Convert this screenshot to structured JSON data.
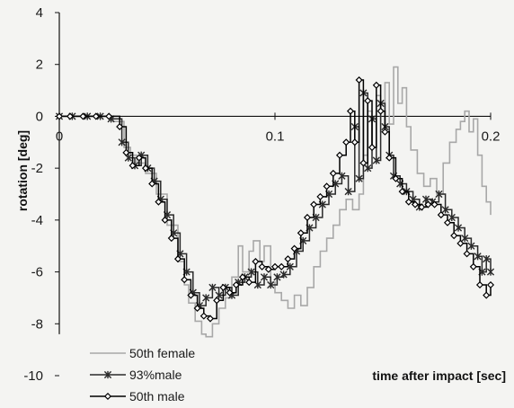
{
  "chart_data": {
    "type": "line",
    "title": "",
    "xlabel": "time after impact  [sec]",
    "ylabel": "rotation [deg]",
    "xlim": [
      0,
      0.2
    ],
    "ylim": [
      -10,
      4
    ],
    "x_ticks": [
      0,
      0.1,
      0.2
    ],
    "x_tick_labels": [
      "0",
      "0.1",
      "0.2"
    ],
    "y_ticks": [
      4,
      2,
      0,
      -2,
      -4,
      -6,
      -8,
      -10
    ],
    "y_tick_labels": [
      "4",
      "2",
      "0",
      "-2",
      "-4",
      "-6",
      "-8",
      "-10"
    ],
    "grid": false,
    "legend_position": "bottom-left",
    "series": [
      {
        "name": "50th female",
        "color": "#a8a8a8",
        "marker": "dash",
        "points": [
          [
            0,
            0
          ],
          [
            0.01,
            0
          ],
          [
            0.02,
            0
          ],
          [
            0.025,
            -0.2
          ],
          [
            0.03,
            -1.2
          ],
          [
            0.033,
            -1.5
          ],
          [
            0.036,
            -1.8
          ],
          [
            0.04,
            -2.2
          ],
          [
            0.045,
            -3.0
          ],
          [
            0.05,
            -4.2
          ],
          [
            0.055,
            -5.6
          ],
          [
            0.058,
            -6.5
          ],
          [
            0.06,
            -7.2
          ],
          [
            0.063,
            -7.9
          ],
          [
            0.066,
            -8.4
          ],
          [
            0.068,
            -8.5
          ],
          [
            0.071,
            -8.0
          ],
          [
            0.074,
            -7.4
          ],
          [
            0.077,
            -7.0
          ],
          [
            0.08,
            -6.2
          ],
          [
            0.083,
            -5.0
          ],
          [
            0.085,
            -6.0
          ],
          [
            0.088,
            -5.2
          ],
          [
            0.09,
            -4.8
          ],
          [
            0.093,
            -5.6
          ],
          [
            0.095,
            -5.0
          ],
          [
            0.098,
            -6.4
          ],
          [
            0.1,
            -6.8
          ],
          [
            0.103,
            -7.1
          ],
          [
            0.106,
            -7.4
          ],
          [
            0.109,
            -6.9
          ],
          [
            0.112,
            -7.3
          ],
          [
            0.115,
            -6.6
          ],
          [
            0.118,
            -5.8
          ],
          [
            0.121,
            -5.2
          ],
          [
            0.124,
            -4.7
          ],
          [
            0.127,
            -4.2
          ],
          [
            0.13,
            -3.6
          ],
          [
            0.133,
            -3.2
          ],
          [
            0.136,
            -3.6
          ],
          [
            0.139,
            -3.0
          ],
          [
            0.141,
            -1.5
          ],
          [
            0.143,
            0.2
          ],
          [
            0.145,
            -1.2
          ],
          [
            0.147,
            0.8
          ],
          [
            0.149,
            -0.6
          ],
          [
            0.151,
            1.3
          ],
          [
            0.153,
            -0.3
          ],
          [
            0.155,
            1.9
          ],
          [
            0.157,
            0.5
          ],
          [
            0.159,
            1.1
          ],
          [
            0.161,
            -0.4
          ],
          [
            0.163,
            -1.3
          ],
          [
            0.166,
            -2.2
          ],
          [
            0.169,
            -2.7
          ],
          [
            0.172,
            -2.4
          ],
          [
            0.175,
            -3.0
          ],
          [
            0.178,
            -1.8
          ],
          [
            0.181,
            -1.0
          ],
          [
            0.184,
            -0.5
          ],
          [
            0.186,
            -0.2
          ],
          [
            0.188,
            0.2
          ],
          [
            0.19,
            -0.6
          ],
          [
            0.192,
            -0.1
          ],
          [
            0.194,
            -1.5
          ],
          [
            0.196,
            -2.7
          ],
          [
            0.198,
            -3.3
          ],
          [
            0.2,
            -3.8
          ]
        ]
      },
      {
        "name": "93%male",
        "color": "#2a2a2a",
        "marker": "asterisk",
        "points": [
          [
            0,
            0
          ],
          [
            0.006,
            0
          ],
          [
            0.013,
            0
          ],
          [
            0.019,
            0
          ],
          [
            0.024,
            -0.1
          ],
          [
            0.029,
            -1.0
          ],
          [
            0.032,
            -1.6
          ],
          [
            0.035,
            -1.9
          ],
          [
            0.038,
            -1.5
          ],
          [
            0.041,
            -2.0
          ],
          [
            0.044,
            -2.5
          ],
          [
            0.047,
            -3.2
          ],
          [
            0.05,
            -3.8
          ],
          [
            0.053,
            -4.5
          ],
          [
            0.056,
            -5.3
          ],
          [
            0.059,
            -6.0
          ],
          [
            0.062,
            -6.8
          ],
          [
            0.065,
            -7.3
          ],
          [
            0.068,
            -7.0
          ],
          [
            0.071,
            -6.6
          ],
          [
            0.074,
            -6.9
          ],
          [
            0.077,
            -6.6
          ],
          [
            0.08,
            -6.9
          ],
          [
            0.083,
            -6.4
          ],
          [
            0.086,
            -6.2
          ],
          [
            0.089,
            -6.0
          ],
          [
            0.092,
            -6.5
          ],
          [
            0.095,
            -6.2
          ],
          [
            0.098,
            -6.5
          ],
          [
            0.101,
            -6.2
          ],
          [
            0.104,
            -6.1
          ],
          [
            0.107,
            -5.8
          ],
          [
            0.11,
            -5.2
          ],
          [
            0.113,
            -4.8
          ],
          [
            0.116,
            -4.3
          ],
          [
            0.119,
            -3.9
          ],
          [
            0.122,
            -3.4
          ],
          [
            0.125,
            -3.0
          ],
          [
            0.128,
            -2.6
          ],
          [
            0.131,
            -2.3
          ],
          [
            0.134,
            -2.9
          ],
          [
            0.137,
            -0.4
          ],
          [
            0.139,
            -2.4
          ],
          [
            0.141,
            0.9
          ],
          [
            0.143,
            -2.0
          ],
          [
            0.145,
            -0.1
          ],
          [
            0.147,
            -1.7
          ],
          [
            0.149,
            0.5
          ],
          [
            0.151,
            -0.4
          ],
          [
            0.153,
            -1.5
          ],
          [
            0.155,
            -2.3
          ],
          [
            0.158,
            -2.6
          ],
          [
            0.161,
            -2.9
          ],
          [
            0.164,
            -3.2
          ],
          [
            0.167,
            -3.5
          ],
          [
            0.17,
            -3.2
          ],
          [
            0.173,
            -3.3
          ],
          [
            0.176,
            -3.0
          ],
          [
            0.179,
            -3.6
          ],
          [
            0.182,
            -3.9
          ],
          [
            0.185,
            -4.3
          ],
          [
            0.188,
            -4.7
          ],
          [
            0.191,
            -5.0
          ],
          [
            0.194,
            -5.4
          ],
          [
            0.196,
            -6.0
          ],
          [
            0.198,
            -5.5
          ],
          [
            0.2,
            -6.0
          ]
        ]
      },
      {
        "name": "50th male",
        "color": "#000000",
        "marker": "diamond",
        "points": [
          [
            0,
            0
          ],
          [
            0.005,
            0
          ],
          [
            0.011,
            0
          ],
          [
            0.017,
            0
          ],
          [
            0.023,
            0
          ],
          [
            0.028,
            -0.4
          ],
          [
            0.031,
            -1.4
          ],
          [
            0.034,
            -1.9
          ],
          [
            0.037,
            -1.6
          ],
          [
            0.04,
            -2.0
          ],
          [
            0.043,
            -2.6
          ],
          [
            0.046,
            -3.3
          ],
          [
            0.049,
            -4.0
          ],
          [
            0.052,
            -4.7
          ],
          [
            0.055,
            -5.5
          ],
          [
            0.058,
            -6.3
          ],
          [
            0.061,
            -6.9
          ],
          [
            0.064,
            -7.4
          ],
          [
            0.067,
            -7.7
          ],
          [
            0.07,
            -7.8
          ],
          [
            0.073,
            -7.1
          ],
          [
            0.076,
            -6.6
          ],
          [
            0.079,
            -6.8
          ],
          [
            0.082,
            -6.5
          ],
          [
            0.085,
            -6.2
          ],
          [
            0.088,
            -6.4
          ],
          [
            0.091,
            -5.6
          ],
          [
            0.094,
            -5.8
          ],
          [
            0.097,
            -5.9
          ],
          [
            0.1,
            -5.8
          ],
          [
            0.103,
            -5.8
          ],
          [
            0.106,
            -5.5
          ],
          [
            0.109,
            -5.1
          ],
          [
            0.112,
            -4.5
          ],
          [
            0.115,
            -3.9
          ],
          [
            0.118,
            -3.4
          ],
          [
            0.121,
            -3.1
          ],
          [
            0.124,
            -2.7
          ],
          [
            0.127,
            -2.2
          ],
          [
            0.13,
            -1.5
          ],
          [
            0.133,
            -1.0
          ],
          [
            0.135,
            0.2
          ],
          [
            0.137,
            -1.0
          ],
          [
            0.139,
            1.4
          ],
          [
            0.141,
            -1.8
          ],
          [
            0.143,
            0.6
          ],
          [
            0.145,
            -1.2
          ],
          [
            0.147,
            1.2
          ],
          [
            0.149,
            0.2
          ],
          [
            0.151,
            -0.6
          ],
          [
            0.153,
            -1.6
          ],
          [
            0.156,
            -2.4
          ],
          [
            0.159,
            -2.9
          ],
          [
            0.162,
            -3.3
          ],
          [
            0.165,
            -3.4
          ],
          [
            0.168,
            -3.5
          ],
          [
            0.171,
            -3.4
          ],
          [
            0.174,
            -3.4
          ],
          [
            0.177,
            -3.8
          ],
          [
            0.18,
            -4.1
          ],
          [
            0.183,
            -4.6
          ],
          [
            0.186,
            -4.9
          ],
          [
            0.189,
            -5.3
          ],
          [
            0.192,
            -5.8
          ],
          [
            0.195,
            -6.5
          ],
          [
            0.198,
            -6.9
          ],
          [
            0.2,
            -6.5
          ]
        ]
      }
    ]
  }
}
